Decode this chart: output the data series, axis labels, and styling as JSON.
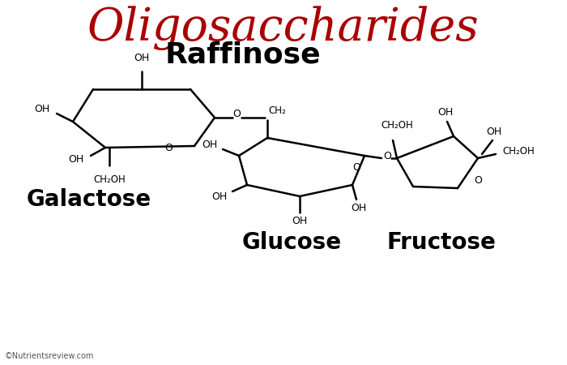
{
  "title": "Oligosaccharides",
  "subtitle": "Raffinose",
  "title_color": "#AA0000",
  "subtitle_color": "#000000",
  "bg_color": "#FFFFFF",
  "line_color": "#000000",
  "label_color": "#000000",
  "labels": {
    "galactose": "Galactose",
    "glucose": "Glucose",
    "fructose": "Fructose",
    "copyright": "©Nutrientsreview.com"
  },
  "title_fontsize": 40,
  "subtitle_fontsize": 26,
  "label_fontsize": 20,
  "annot_fontsize": 8.5,
  "line_width": 1.8
}
